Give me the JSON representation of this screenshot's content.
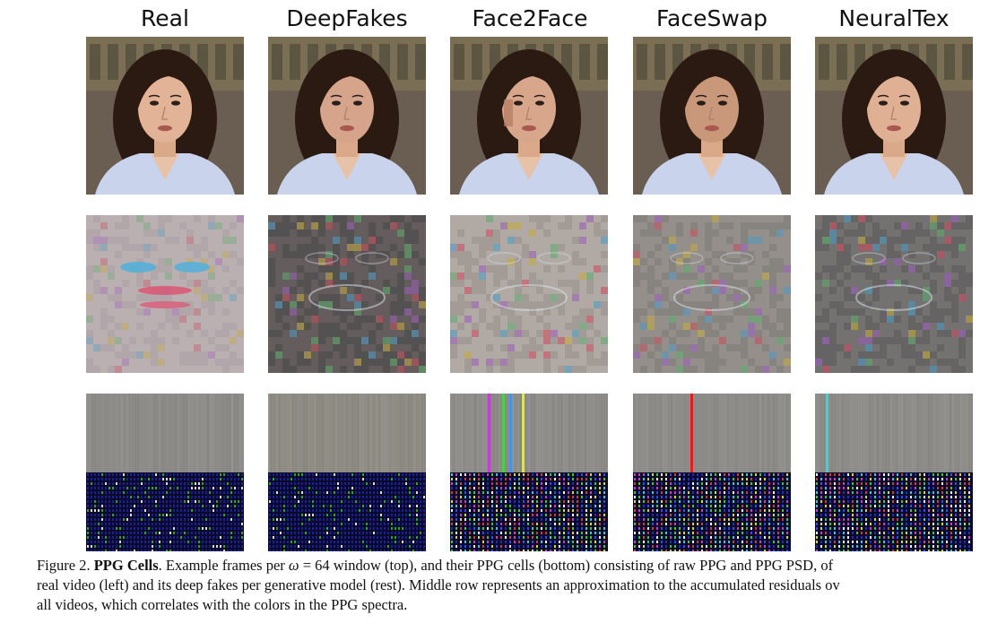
{
  "columns": [
    {
      "id": "real",
      "title": "Real"
    },
    {
      "id": "deepfakes",
      "title": "DeepFakes"
    },
    {
      "id": "face2face",
      "title": "Face2Face"
    },
    {
      "id": "faceswap",
      "title": "FaceSwap"
    },
    {
      "id": "neuraltex",
      "title": "NeuralTex"
    }
  ],
  "caption": {
    "prefix": "Figure 2. ",
    "bold": "PPG Cells",
    "line1_rest": ". Example frames per ",
    "omega": "ω",
    "equals": " = 64",
    "line1_tail": " window (top), and their PPG cells (bottom) consisting of raw PPG and PPG PSD, of",
    "line2": "real video (left) and its deep fakes per generative model (rest). Middle row represents an approximation to the accumulated residuals ov",
    "line3": "all videos, which correlates with the colors in the PPG spectra."
  },
  "colors": {
    "background": "#ffffff",
    "psd_background": "#0a0a26",
    "raw_ppg_gray": "#8c8c8c"
  }
}
